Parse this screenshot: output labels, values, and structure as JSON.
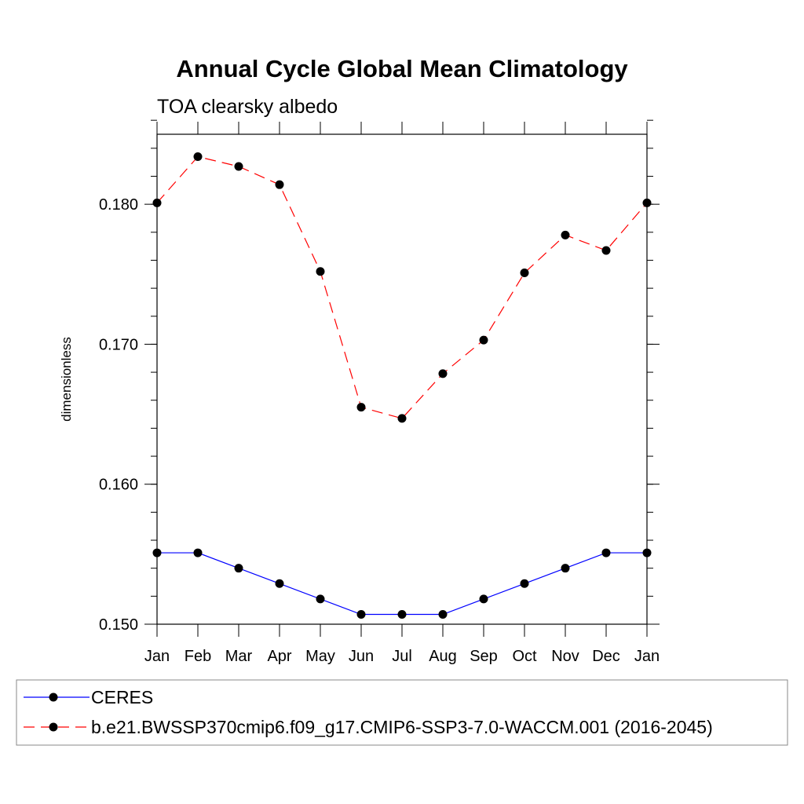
{
  "chart_data": {
    "type": "line",
    "title": "Annual Cycle Global Mean Climatology",
    "subtitle": "TOA clearsky albedo",
    "xlabel": "",
    "ylabel": "dimensionless",
    "categories": [
      "Jan",
      "Feb",
      "Mar",
      "Apr",
      "May",
      "Jun",
      "Jul",
      "Aug",
      "Sep",
      "Oct",
      "Nov",
      "Dec",
      "Jan"
    ],
    "ylim": [
      0.15,
      0.185
    ],
    "yticks": [
      "0.150",
      "0.160",
      "0.170",
      "0.180"
    ],
    "grid": false,
    "legend_position": "bottom",
    "series": [
      {
        "name": "CERES",
        "color": "#0000ff",
        "line_style": "solid",
        "marker": "filled-circle",
        "values": [
          0.1551,
          0.1551,
          0.154,
          0.1529,
          0.1518,
          0.1507,
          0.1507,
          0.1507,
          0.1518,
          0.1529,
          0.154,
          0.1551,
          0.1551
        ]
      },
      {
        "name": "b.e21.BWSSP370cmip6.f09_g17.CMIP6-SSP3-7.0-WACCM.001 (2016-2045)",
        "color": "#ff0000",
        "line_style": "dashed",
        "marker": "filled-circle",
        "values": [
          0.1801,
          0.1834,
          0.1827,
          0.1814,
          0.1752,
          0.1655,
          0.1647,
          0.1679,
          0.1703,
          0.1751,
          0.1778,
          0.1767,
          0.1801
        ]
      }
    ]
  }
}
